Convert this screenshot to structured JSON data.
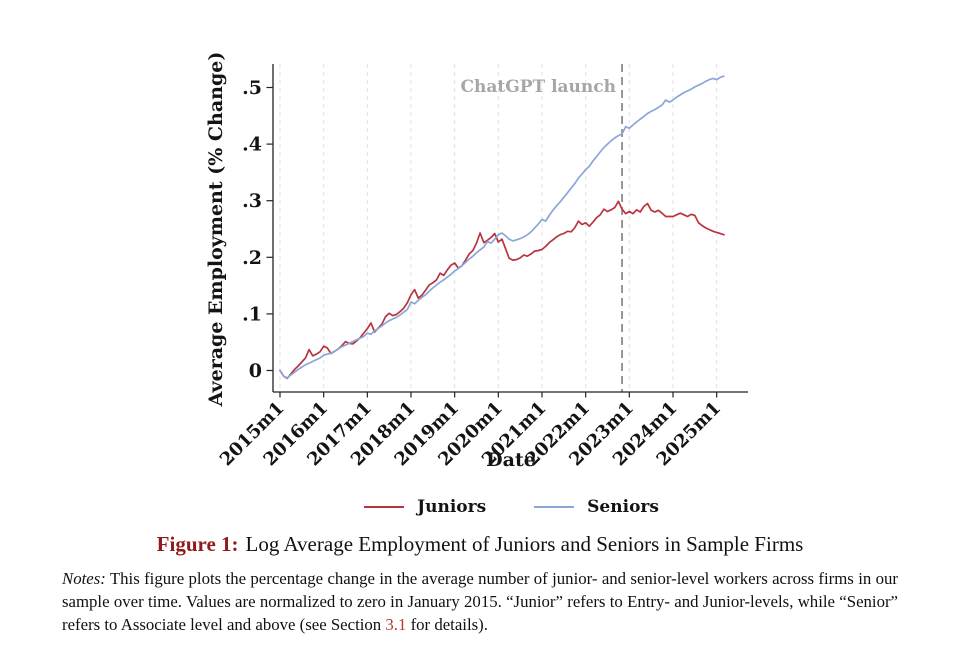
{
  "figure": {
    "caption_label": "Figure 1:",
    "caption_text": "Log Average Employment of Juniors and Seniors in Sample Firms",
    "notes_prefix": "Notes:",
    "notes_body1": " This figure plots the percentage change in the average number of junior- and senior-level workers across firms in our sample over time. Values are normalized to zero in January 2015. “Junior” refers to Entry- and Junior-levels, while “Senior” refers to Associate level and above (see Section ",
    "section_link": "3.1",
    "notes_body2": " for details)."
  },
  "chart_data": {
    "type": "line",
    "title": "",
    "xlabel": "Date",
    "ylabel": "Average Employment (% Change)",
    "x_tick_labels": [
      "2015m1",
      "2016m1",
      "2017m1",
      "2018m1",
      "2019m1",
      "2020m1",
      "2021m1",
      "2022m1",
      "2023m1",
      "2024m1",
      "2025m1"
    ],
    "y_tick_labels": [
      "0",
      ".1",
      ".2",
      ".3",
      ".4",
      ".5"
    ],
    "y_tick_values": [
      0,
      0.1,
      0.2,
      0.3,
      0.4,
      0.5
    ],
    "ylim": [
      -0.03,
      0.53
    ],
    "x_start": "2015m1",
    "x_end": "2025m3",
    "x_frequency": "monthly",
    "grid": "vertical-dashed",
    "legend_position": "bottom",
    "annotation": {
      "label": "ChatGPT launch",
      "x": "2022m11",
      "month_index": 94,
      "style": "vertical-dashed-line"
    },
    "series": [
      {
        "name": "Juniors",
        "color": "#b9343e",
        "values": [
          0.0,
          -0.01,
          -0.014,
          -0.006,
          0.002,
          0.008,
          0.015,
          0.022,
          0.037,
          0.026,
          0.029,
          0.033,
          0.043,
          0.04,
          0.03,
          0.034,
          0.038,
          0.044,
          0.051,
          0.048,
          0.047,
          0.052,
          0.058,
          0.066,
          0.074,
          0.084,
          0.068,
          0.075,
          0.082,
          0.095,
          0.101,
          0.097,
          0.099,
          0.104,
          0.11,
          0.12,
          0.134,
          0.143,
          0.128,
          0.133,
          0.142,
          0.151,
          0.155,
          0.16,
          0.172,
          0.168,
          0.178,
          0.186,
          0.19,
          0.181,
          0.185,
          0.195,
          0.206,
          0.212,
          0.225,
          0.243,
          0.226,
          0.23,
          0.235,
          0.242,
          0.227,
          0.232,
          0.215,
          0.198,
          0.195,
          0.196,
          0.199,
          0.204,
          0.202,
          0.206,
          0.211,
          0.212,
          0.214,
          0.219,
          0.226,
          0.231,
          0.236,
          0.24,
          0.242,
          0.246,
          0.245,
          0.252,
          0.264,
          0.258,
          0.261,
          0.255,
          0.262,
          0.27,
          0.275,
          0.285,
          0.281,
          0.284,
          0.288,
          0.299,
          0.285,
          0.277,
          0.281,
          0.277,
          0.284,
          0.28,
          0.29,
          0.295,
          0.283,
          0.28,
          0.283,
          0.278,
          0.272,
          0.272,
          0.272,
          0.275,
          0.278,
          0.275,
          0.272,
          0.276,
          0.274,
          0.261,
          0.256,
          0.252,
          0.249,
          0.246,
          0.244,
          0.242,
          0.24
        ]
      },
      {
        "name": "Seniors",
        "color": "#8ca6d8",
        "values": [
          0.0,
          -0.01,
          -0.013,
          -0.008,
          -0.003,
          0.002,
          0.006,
          0.01,
          0.013,
          0.016,
          0.019,
          0.022,
          0.027,
          0.029,
          0.031,
          0.034,
          0.038,
          0.042,
          0.045,
          0.048,
          0.051,
          0.054,
          0.057,
          0.06,
          0.066,
          0.064,
          0.07,
          0.074,
          0.079,
          0.084,
          0.088,
          0.091,
          0.094,
          0.098,
          0.103,
          0.108,
          0.121,
          0.118,
          0.124,
          0.129,
          0.134,
          0.14,
          0.146,
          0.151,
          0.156,
          0.16,
          0.165,
          0.17,
          0.176,
          0.18,
          0.185,
          0.191,
          0.197,
          0.202,
          0.208,
          0.213,
          0.218,
          0.228,
          0.225,
          0.232,
          0.24,
          0.243,
          0.238,
          0.232,
          0.229,
          0.231,
          0.233,
          0.236,
          0.24,
          0.245,
          0.252,
          0.259,
          0.267,
          0.264,
          0.274,
          0.283,
          0.291,
          0.298,
          0.306,
          0.314,
          0.322,
          0.33,
          0.34,
          0.347,
          0.355,
          0.361,
          0.37,
          0.378,
          0.386,
          0.394,
          0.4,
          0.406,
          0.411,
          0.415,
          0.418,
          0.431,
          0.428,
          0.434,
          0.439,
          0.444,
          0.449,
          0.454,
          0.458,
          0.461,
          0.465,
          0.469,
          0.478,
          0.474,
          0.478,
          0.483,
          0.487,
          0.491,
          0.494,
          0.497,
          0.501,
          0.504,
          0.507,
          0.511,
          0.514,
          0.516,
          0.514,
          0.518,
          0.52
        ]
      }
    ]
  }
}
